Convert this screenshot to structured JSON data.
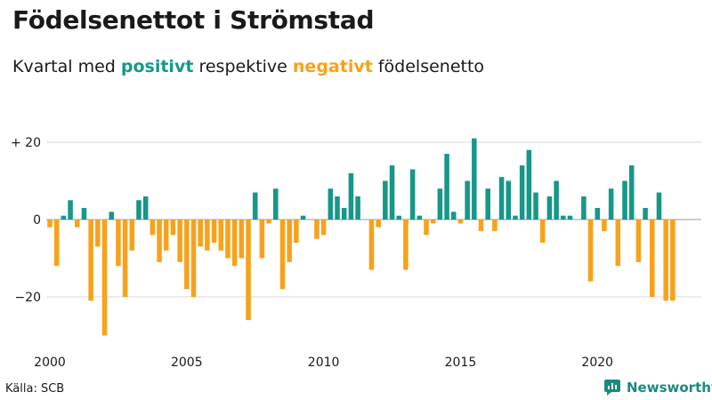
{
  "header": {
    "title": "Födelsenettot i Strömstad",
    "subtitle_prefix": "Kvartal med ",
    "subtitle_positive": "positivt",
    "subtitle_middle": " respektive ",
    "subtitle_negative": "negativt",
    "subtitle_suffix": " födelsenetto"
  },
  "colors": {
    "positive": "#16978a",
    "negative": "#f7a21b",
    "grid": "#d9d9d9",
    "text": "#1a1a1a"
  },
  "chart_data": {
    "type": "bar",
    "title": "Födelsenettot i Strömstad",
    "subtitle": "Kvartal med positivt respektive negativt födelsenetto",
    "start_year": 2000,
    "periods_per_year": 4,
    "xlim": [
      2000,
      2023.6
    ],
    "ylim": [
      -33,
      24
    ],
    "y_ticks": [
      20,
      0,
      -20
    ],
    "y_tick_labels": [
      "+ 20",
      "0",
      "−20"
    ],
    "x_ticks": [
      2000,
      2005,
      2010,
      2015,
      2020
    ],
    "x_tick_labels": [
      "2000",
      "2005",
      "2010",
      "2015",
      "2020"
    ],
    "values": [
      -2,
      -12,
      1,
      5,
      -2,
      3,
      -21,
      -7,
      -30,
      2,
      -12,
      -20,
      -8,
      5,
      6,
      -4,
      -11,
      -8,
      -4,
      -11,
      -18,
      -20,
      -7,
      -8,
      -6,
      -8,
      -10,
      -12,
      -10,
      -26,
      7,
      -10,
      -1,
      8,
      -18,
      -11,
      -6,
      1,
      0,
      -5,
      -4,
      8,
      6,
      3,
      12,
      6,
      0,
      -13,
      -2,
      10,
      14,
      1,
      -13,
      13,
      1,
      -4,
      -1,
      8,
      17,
      2,
      -1,
      10,
      21,
      -3,
      8,
      -3,
      11,
      10,
      1,
      14,
      18,
      7,
      -6,
      6,
      10,
      1,
      1,
      0,
      6,
      -16,
      3,
      -3,
      8,
      -12,
      10,
      14,
      -11,
      3,
      -20,
      7,
      -21,
      -21
    ],
    "grid": true,
    "legend": "in subtitle"
  },
  "footer": {
    "source": "Källa: SCB",
    "brand": "Newsworthy"
  }
}
